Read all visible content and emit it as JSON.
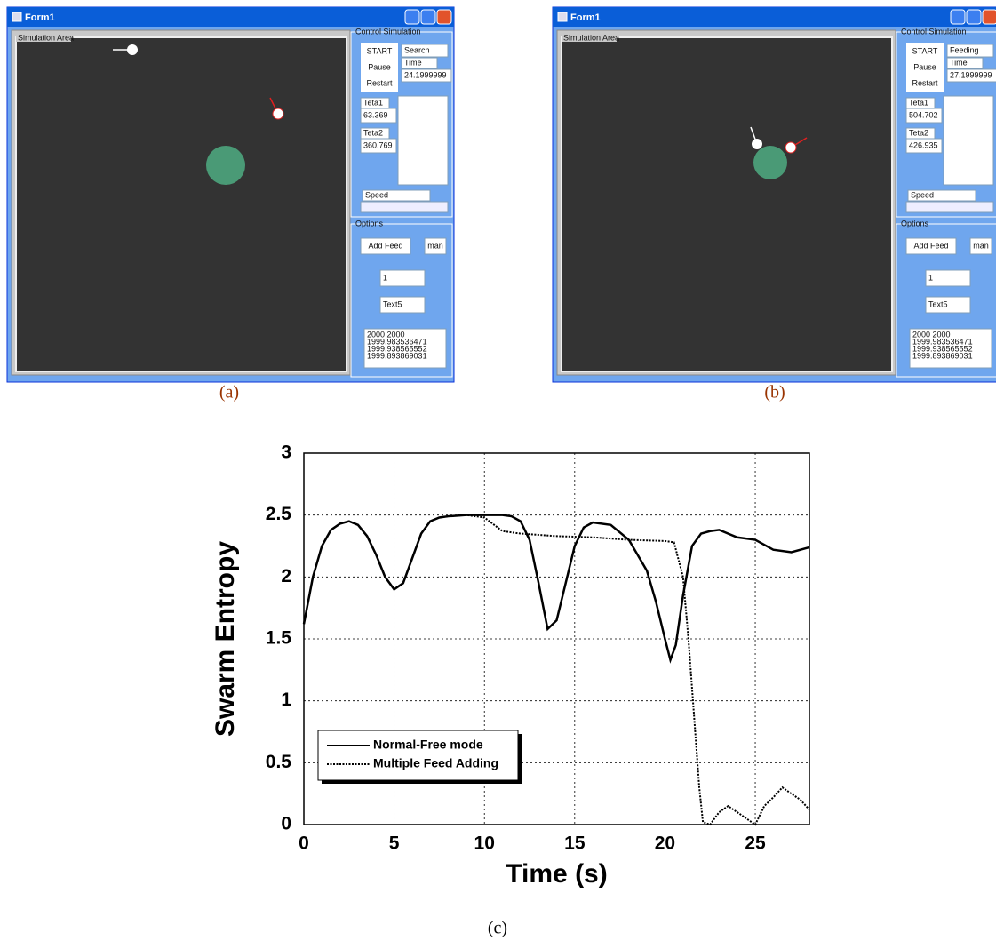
{
  "windows": [
    {
      "caption": "(a)",
      "title": "Form1",
      "sim_label": "Simulation Area",
      "control_label": "Control Simulation",
      "buttons": [
        "START",
        "Pause",
        "Restart"
      ],
      "mode": "Search",
      "time_label": "Time",
      "time": "24.1999999",
      "teta1_label": "Teta1",
      "teta1": "63.369",
      "teta2_label": "Teta2",
      "teta2": "360.769",
      "speed_label": "Speed",
      "options_label": "Options",
      "add_feed": "Add Feed",
      "man": "man",
      "field1": "1",
      "field2": "Text5",
      "list": [
        "2000  2000",
        "1999.983536471",
        "1999.938565552",
        "1999.893869031"
      ]
    },
    {
      "caption": "(b)",
      "title": "Form1",
      "sim_label": "Simulation Area",
      "control_label": "Control Simulation",
      "buttons": [
        "START",
        "Pause",
        "Restart"
      ],
      "mode": "Feeding",
      "time_label": "Time",
      "time": "27.1999999",
      "teta1_label": "Teta1",
      "teta1": "504.702",
      "teta2_label": "Teta2",
      "teta2": "426.935",
      "speed_label": "Speed",
      "options_label": "Options",
      "add_feed": "Add Feed",
      "man": "man",
      "field1": "1",
      "field2": "Text5",
      "list": [
        "2000  2000",
        "1999.983536471",
        "1999.938565552",
        "1999.893869031"
      ]
    }
  ],
  "chart_data": {
    "type": "line",
    "caption": "(c)",
    "x_label": "Time (s)",
    "y_label": "Swarm Entropy",
    "xlim": [
      0,
      28
    ],
    "xticks": [
      0,
      5,
      10,
      15,
      20,
      25
    ],
    "ylim": [
      0,
      3
    ],
    "yticks": [
      0,
      0.5,
      1,
      1.5,
      2,
      2.5,
      3
    ],
    "grid": true,
    "legend": "lower-left",
    "series": [
      {
        "name": "Normal-Free mode",
        "color": "#000000",
        "linestyle": "solid",
        "x": [
          0,
          0.5,
          1,
          1.5,
          2,
          2.5,
          3,
          3.5,
          4,
          4.5,
          5,
          5.5,
          6,
          6.5,
          7,
          7.5,
          8,
          9,
          10,
          11,
          11.5,
          12,
          12.5,
          13,
          13.5,
          14,
          14.5,
          15,
          15.5,
          16,
          17,
          18,
          19,
          19.5,
          20,
          20.3,
          20.6,
          21,
          21.5,
          22,
          22.5,
          23,
          24,
          25,
          26,
          27,
          28
        ],
        "values": [
          1.62,
          2.0,
          2.25,
          2.38,
          2.43,
          2.45,
          2.42,
          2.33,
          2.18,
          2.0,
          1.9,
          1.95,
          2.15,
          2.35,
          2.45,
          2.48,
          2.49,
          2.5,
          2.5,
          2.5,
          2.49,
          2.45,
          2.3,
          1.95,
          1.58,
          1.65,
          1.95,
          2.25,
          2.4,
          2.44,
          2.42,
          2.3,
          2.05,
          1.8,
          1.5,
          1.33,
          1.45,
          1.85,
          2.25,
          2.35,
          2.37,
          2.38,
          2.32,
          2.3,
          2.22,
          2.2,
          2.24
        ]
      },
      {
        "name": "Multiple Feed Adding",
        "color": "#000000",
        "linestyle": "dotted",
        "x": [
          0,
          0.5,
          1,
          1.5,
          2,
          2.5,
          3,
          3.5,
          4,
          4.5,
          5,
          5.5,
          6,
          6.5,
          7,
          7.5,
          8,
          9,
          10,
          11,
          12,
          14,
          16,
          18,
          20,
          20.5,
          21,
          21.3,
          21.6,
          21.9,
          22.1,
          22.5,
          23,
          23.5,
          24,
          24.5,
          25,
          25.5,
          26,
          26.5,
          27,
          27.5,
          28
        ],
        "values": [
          1.62,
          2.0,
          2.25,
          2.38,
          2.43,
          2.45,
          2.42,
          2.33,
          2.18,
          2.0,
          1.9,
          1.95,
          2.15,
          2.35,
          2.45,
          2.48,
          2.49,
          2.5,
          2.48,
          2.37,
          2.35,
          2.33,
          2.32,
          2.3,
          2.29,
          2.28,
          2.0,
          1.5,
          0.9,
          0.3,
          0.02,
          0.0,
          0.1,
          0.15,
          0.1,
          0.05,
          0.0,
          0.15,
          0.22,
          0.3,
          0.25,
          0.2,
          0.12
        ]
      }
    ]
  }
}
